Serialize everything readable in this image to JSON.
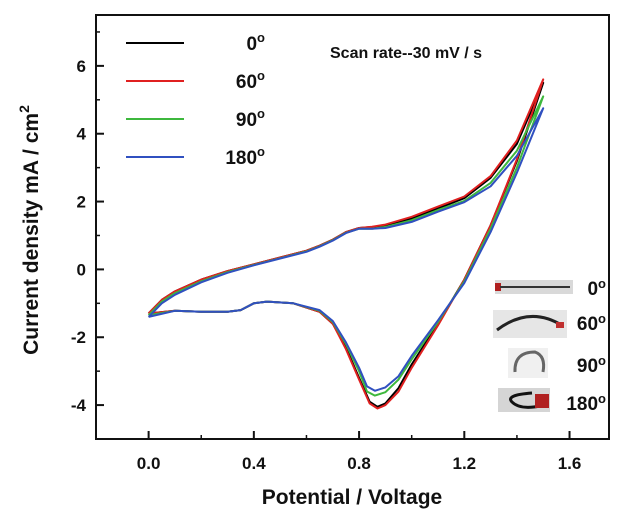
{
  "chart_data": {
    "type": "line",
    "title": "",
    "xlabel": "Potential / Voltage",
    "ylabel": "Current density mA / cm",
    "ylabel_superscript": "2",
    "annotation": "Scan rate--30 mV / s",
    "xlim": [
      -0.2,
      1.75
    ],
    "ylim": [
      -5.0,
      7.5
    ],
    "xticks": [
      "0.0",
      "0.4",
      "0.8",
      "1.2",
      "1.6"
    ],
    "xtick_values": [
      0.0,
      0.4,
      0.8,
      1.2,
      1.6
    ],
    "yticks": [
      "-4",
      "-2",
      "0",
      "2",
      "4",
      "6"
    ],
    "ytick_values": [
      -4,
      -2,
      0,
      2,
      4,
      6
    ],
    "grid": false,
    "legend_position": "top-left",
    "degree_symbol": "o",
    "series": [
      {
        "name": "0",
        "color": "#000000",
        "scale": 1.0,
        "upper": [
          [
            0.0,
            -1.3
          ],
          [
            0.05,
            -0.9
          ],
          [
            0.1,
            -0.65
          ],
          [
            0.2,
            -0.3
          ],
          [
            0.3,
            -0.05
          ],
          [
            0.4,
            0.15
          ],
          [
            0.5,
            0.35
          ],
          [
            0.6,
            0.55
          ],
          [
            0.65,
            0.7
          ],
          [
            0.7,
            0.88
          ],
          [
            0.75,
            1.1
          ],
          [
            0.8,
            1.22
          ],
          [
            0.85,
            1.25
          ],
          [
            0.9,
            1.3
          ],
          [
            1.0,
            1.5
          ],
          [
            1.1,
            1.8
          ],
          [
            1.2,
            2.1
          ],
          [
            1.3,
            2.7
          ],
          [
            1.4,
            3.7
          ],
          [
            1.5,
            5.5
          ]
        ],
        "lower": [
          [
            1.5,
            5.5
          ],
          [
            1.4,
            3.2
          ],
          [
            1.3,
            1.3
          ],
          [
            1.2,
            -0.3
          ],
          [
            1.1,
            -1.6
          ],
          [
            1.0,
            -2.8
          ],
          [
            0.95,
            -3.5
          ],
          [
            0.9,
            -3.95
          ],
          [
            0.87,
            -4.05
          ],
          [
            0.84,
            -3.9
          ],
          [
            0.8,
            -3.2
          ],
          [
            0.75,
            -2.3
          ],
          [
            0.7,
            -1.6
          ],
          [
            0.65,
            -1.25
          ],
          [
            0.55,
            -1.0
          ],
          [
            0.45,
            -0.95
          ],
          [
            0.4,
            -1.0
          ],
          [
            0.35,
            -1.2
          ],
          [
            0.3,
            -1.25
          ],
          [
            0.2,
            -1.25
          ],
          [
            0.1,
            -1.22
          ],
          [
            0.0,
            -1.3
          ]
        ]
      },
      {
        "name": "60",
        "color": "#e02020",
        "scale": 1.03,
        "upper": [
          [
            0.0,
            -1.3
          ],
          [
            0.05,
            -0.9
          ],
          [
            0.1,
            -0.65
          ],
          [
            0.2,
            -0.3
          ],
          [
            0.3,
            -0.05
          ],
          [
            0.4,
            0.15
          ],
          [
            0.5,
            0.35
          ],
          [
            0.6,
            0.55
          ],
          [
            0.65,
            0.7
          ],
          [
            0.7,
            0.88
          ],
          [
            0.75,
            1.1
          ],
          [
            0.8,
            1.22
          ],
          [
            0.85,
            1.26
          ],
          [
            0.9,
            1.32
          ],
          [
            1.0,
            1.55
          ],
          [
            1.1,
            1.85
          ],
          [
            1.2,
            2.15
          ],
          [
            1.3,
            2.75
          ],
          [
            1.4,
            3.8
          ],
          [
            1.5,
            5.6
          ]
        ],
        "lower": [
          [
            1.5,
            5.6
          ],
          [
            1.4,
            3.25
          ],
          [
            1.3,
            1.3
          ],
          [
            1.2,
            -0.3
          ],
          [
            1.1,
            -1.65
          ],
          [
            1.0,
            -2.9
          ],
          [
            0.95,
            -3.6
          ],
          [
            0.9,
            -4.0
          ],
          [
            0.87,
            -4.1
          ],
          [
            0.84,
            -3.95
          ],
          [
            0.8,
            -3.25
          ],
          [
            0.75,
            -2.35
          ],
          [
            0.7,
            -1.6
          ],
          [
            0.65,
            -1.25
          ],
          [
            0.55,
            -1.0
          ],
          [
            0.45,
            -0.95
          ],
          [
            0.4,
            -1.0
          ],
          [
            0.35,
            -1.2
          ],
          [
            0.3,
            -1.25
          ],
          [
            0.2,
            -1.25
          ],
          [
            0.1,
            -1.22
          ],
          [
            0.0,
            -1.3
          ]
        ]
      },
      {
        "name": "90",
        "color": "#3db83d",
        "scale": 0.95,
        "upper": [
          [
            0.0,
            -1.35
          ],
          [
            0.05,
            -0.95
          ],
          [
            0.1,
            -0.7
          ],
          [
            0.2,
            -0.35
          ],
          [
            0.3,
            -0.08
          ],
          [
            0.4,
            0.13
          ],
          [
            0.5,
            0.33
          ],
          [
            0.6,
            0.53
          ],
          [
            0.65,
            0.68
          ],
          [
            0.7,
            0.86
          ],
          [
            0.75,
            1.08
          ],
          [
            0.8,
            1.2
          ],
          [
            0.85,
            1.2
          ],
          [
            0.9,
            1.25
          ],
          [
            1.0,
            1.45
          ],
          [
            1.1,
            1.75
          ],
          [
            1.2,
            2.02
          ],
          [
            1.3,
            2.55
          ],
          [
            1.4,
            3.5
          ],
          [
            1.5,
            5.1
          ]
        ],
        "lower": [
          [
            1.5,
            5.1
          ],
          [
            1.4,
            3.0
          ],
          [
            1.3,
            1.2
          ],
          [
            1.2,
            -0.35
          ],
          [
            1.1,
            -1.55
          ],
          [
            1.0,
            -2.65
          ],
          [
            0.95,
            -3.25
          ],
          [
            0.9,
            -3.62
          ],
          [
            0.86,
            -3.72
          ],
          [
            0.83,
            -3.6
          ],
          [
            0.8,
            -3.0
          ],
          [
            0.75,
            -2.2
          ],
          [
            0.7,
            -1.55
          ],
          [
            0.65,
            -1.22
          ],
          [
            0.55,
            -1.0
          ],
          [
            0.45,
            -0.95
          ],
          [
            0.4,
            -1.0
          ],
          [
            0.35,
            -1.2
          ],
          [
            0.3,
            -1.25
          ],
          [
            0.2,
            -1.25
          ],
          [
            0.1,
            -1.22
          ],
          [
            0.0,
            -1.35
          ]
        ]
      },
      {
        "name": "180",
        "color": "#3050c0",
        "scale": 0.9,
        "upper": [
          [
            0.0,
            -1.4
          ],
          [
            0.05,
            -1.0
          ],
          [
            0.1,
            -0.75
          ],
          [
            0.2,
            -0.38
          ],
          [
            0.3,
            -0.1
          ],
          [
            0.4,
            0.12
          ],
          [
            0.5,
            0.32
          ],
          [
            0.6,
            0.52
          ],
          [
            0.65,
            0.67
          ],
          [
            0.7,
            0.85
          ],
          [
            0.75,
            1.07
          ],
          [
            0.8,
            1.2
          ],
          [
            0.85,
            1.2
          ],
          [
            0.9,
            1.22
          ],
          [
            1.0,
            1.4
          ],
          [
            1.1,
            1.7
          ],
          [
            1.2,
            1.98
          ],
          [
            1.3,
            2.45
          ],
          [
            1.4,
            3.35
          ],
          [
            1.5,
            4.75
          ]
        ],
        "lower": [
          [
            1.5,
            4.75
          ],
          [
            1.4,
            2.85
          ],
          [
            1.3,
            1.1
          ],
          [
            1.2,
            -0.4
          ],
          [
            1.1,
            -1.5
          ],
          [
            1.0,
            -2.55
          ],
          [
            0.95,
            -3.15
          ],
          [
            0.9,
            -3.48
          ],
          [
            0.86,
            -3.58
          ],
          [
            0.83,
            -3.45
          ],
          [
            0.8,
            -2.9
          ],
          [
            0.75,
            -2.15
          ],
          [
            0.7,
            -1.52
          ],
          [
            0.65,
            -1.2
          ],
          [
            0.55,
            -1.0
          ],
          [
            0.45,
            -0.95
          ],
          [
            0.4,
            -1.0
          ],
          [
            0.35,
            -1.2
          ],
          [
            0.3,
            -1.25
          ],
          [
            0.2,
            -1.25
          ],
          [
            0.1,
            -1.22
          ],
          [
            0.0,
            -1.4
          ]
        ]
      }
    ],
    "inset_labels": [
      "0",
      "60",
      "90",
      "180"
    ]
  }
}
